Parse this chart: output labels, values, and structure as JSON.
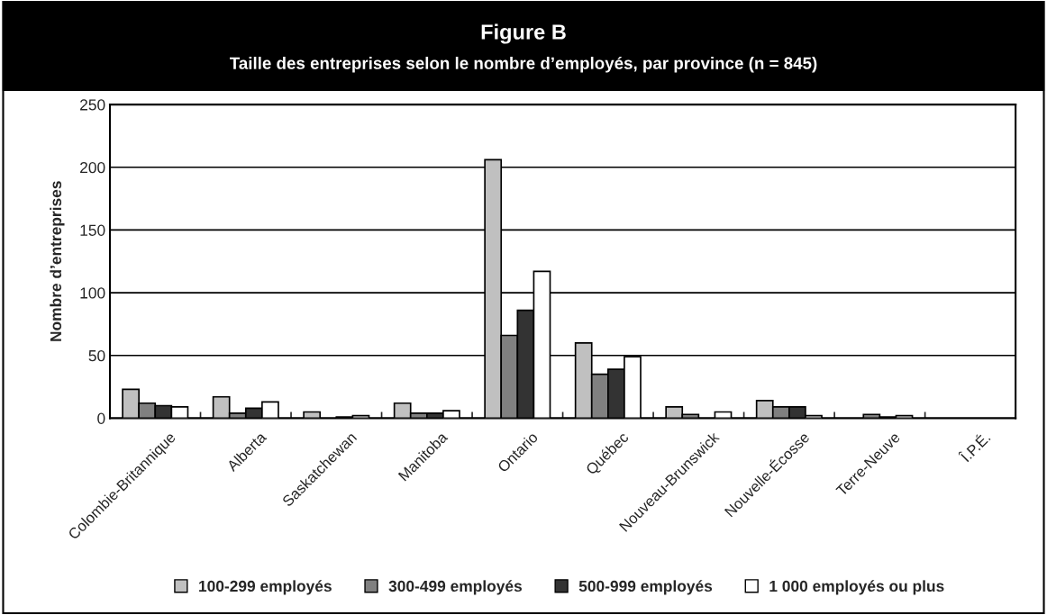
{
  "chart_data": {
    "type": "bar",
    "title": "Figure B",
    "subtitle": "Taille des entreprises selon le nombre d’employés, par province (n = 845)",
    "ylabel": "Nombre d’entreprises",
    "categories": [
      "Colombie-Britannique",
      "Alberta",
      "Saskatchewan",
      "Manitoba",
      "Ontario",
      "Québec",
      "Nouveau-Brunswick",
      "Nouvelle-Écosse",
      "Terre-Neuve",
      "Î.P.É."
    ],
    "series": [
      {
        "name": "100-299 employés",
        "color": "#c0c0c0",
        "values": [
          23,
          17,
          5,
          12,
          206,
          60,
          9,
          14,
          0,
          0
        ]
      },
      {
        "name": "300-499 employés",
        "color": "#808080",
        "values": [
          12,
          4,
          0,
          4,
          66,
          35,
          3,
          9,
          3,
          0
        ]
      },
      {
        "name": "500-999 employés",
        "color": "#333333",
        "values": [
          10,
          8,
          1,
          4,
          86,
          39,
          0,
          9,
          1,
          0
        ]
      },
      {
        "name": "1 000 employés ou plus",
        "color": "#ffffff",
        "values": [
          9,
          13,
          2,
          6,
          117,
          49,
          5,
          2,
          2,
          0
        ]
      }
    ],
    "ylim": [
      0,
      250
    ],
    "yticks": [
      0,
      50,
      100,
      150,
      200,
      250
    ],
    "grid": "y",
    "legend": "bottom",
    "marker": "square"
  }
}
